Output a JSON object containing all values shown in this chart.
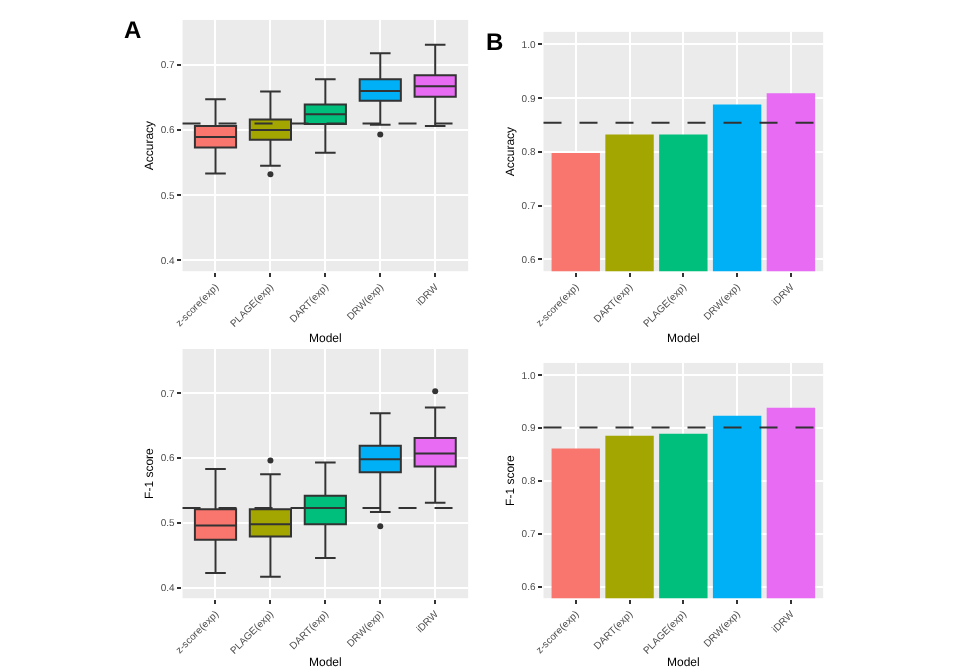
{
  "chart_data": [
    {
      "type": "box",
      "title": "A",
      "xlabel": "Model",
      "ylabel": "Accuracy",
      "categories": [
        "z-score(exp)",
        "PLAGE(exp)",
        "DART(exp)",
        "DRW(exp)",
        "iDRW"
      ],
      "colors": [
        "#f8766d",
        "#a3a500",
        "#00bf7d",
        "#00b0f6",
        "#e76bf3"
      ],
      "boxes": [
        {
          "low": 0.533,
          "q1": 0.573,
          "median": 0.589,
          "q3": 0.606,
          "high": 0.647
        },
        {
          "low": 0.545,
          "q1": 0.585,
          "median": 0.6,
          "q3": 0.616,
          "high": 0.659,
          "outliers": [
            0.532
          ]
        },
        {
          "low": 0.565,
          "q1": 0.609,
          "median": 0.624,
          "q3": 0.639,
          "high": 0.678
        },
        {
          "low": 0.608,
          "q1": 0.645,
          "median": 0.66,
          "q3": 0.678,
          "high": 0.718,
          "outliers": [
            0.593
          ]
        },
        {
          "low": 0.606,
          "q1": 0.651,
          "median": 0.667,
          "q3": 0.684,
          "high": 0.731
        }
      ],
      "ylim": [
        0.383,
        0.769
      ],
      "yticks": [
        0.4,
        0.5,
        0.6,
        0.7
      ],
      "grid": true,
      "ref_lines": [
        {
          "axis": "y",
          "value": 0.61,
          "color": "#333333",
          "line_style": "dashed"
        }
      ]
    },
    {
      "type": "bar",
      "title": "B",
      "xlabel": "Model",
      "ylabel": "Accuracy",
      "categories": [
        "z-score(exp)",
        "DART(exp)",
        "PLAGE(exp)",
        "DRW(exp)",
        "iDRW"
      ],
      "colors": [
        "#f8766d",
        "#a3a500",
        "#00bf7d",
        "#00b0f6",
        "#e76bf3"
      ],
      "values": [
        0.798,
        0.832,
        0.832,
        0.888,
        0.909
      ],
      "ylim": [
        0.578,
        1.023
      ],
      "yticks": [
        0.6,
        0.7,
        0.8,
        0.9,
        {
          "value": 1,
          "label": "1.0"
        }
      ],
      "grid": true,
      "ref_lines": [
        {
          "axis": "y",
          "value": 0.854,
          "color": "#333333",
          "line_style": "dashed"
        }
      ]
    },
    {
      "type": "box",
      "xlabel": "Model",
      "ylabel": "F-1 score",
      "categories": [
        "z-score(exp)",
        "PLAGE(exp)",
        "DART(exp)",
        "DRW(exp)",
        "iDRW"
      ],
      "colors": [
        "#f8766d",
        "#a3a500",
        "#00bf7d",
        "#00b0f6",
        "#e76bf3"
      ],
      "boxes": [
        {
          "low": 0.423,
          "q1": 0.474,
          "median": 0.496,
          "q3": 0.521,
          "high": 0.583
        },
        {
          "low": 0.417,
          "q1": 0.479,
          "median": 0.498,
          "q3": 0.521,
          "high": 0.575,
          "outliers": [
            0.596
          ]
        },
        {
          "low": 0.446,
          "q1": 0.498,
          "median": 0.523,
          "q3": 0.542,
          "high": 0.593
        },
        {
          "low": 0.517,
          "q1": 0.578,
          "median": 0.598,
          "q3": 0.619,
          "high": 0.669,
          "outliers": [
            0.495
          ]
        },
        {
          "low": 0.531,
          "q1": 0.587,
          "median": 0.607,
          "q3": 0.631,
          "high": 0.678,
          "outliers": [
            0.703
          ]
        }
      ],
      "ylim": [
        0.384,
        0.768
      ],
      "yticks": [
        0.4,
        0.5,
        0.6,
        0.7
      ],
      "grid": true,
      "ref_lines": [
        {
          "axis": "y",
          "value": 0.523,
          "color": "#333333",
          "line_style": "dashed"
        }
      ]
    },
    {
      "type": "bar",
      "xlabel": "Model",
      "ylabel": "F-1 score",
      "categories": [
        "z-score(exp)",
        "DART(exp)",
        "PLAGE(exp)",
        "DRW(exp)",
        "iDRW"
      ],
      "colors": [
        "#f8766d",
        "#a3a500",
        "#00bf7d",
        "#00b0f6",
        "#e76bf3"
      ],
      "values": [
        0.861,
        0.885,
        0.889,
        0.923,
        0.938
      ],
      "ylim": [
        0.578,
        1.023
      ],
      "yticks": [
        0.6,
        0.7,
        0.8,
        0.9,
        {
          "value": 1,
          "label": "1.0"
        }
      ],
      "grid": true,
      "ref_lines": [
        {
          "axis": "y",
          "value": 0.901,
          "color": "#333333",
          "line_style": "dashed"
        }
      ]
    }
  ]
}
